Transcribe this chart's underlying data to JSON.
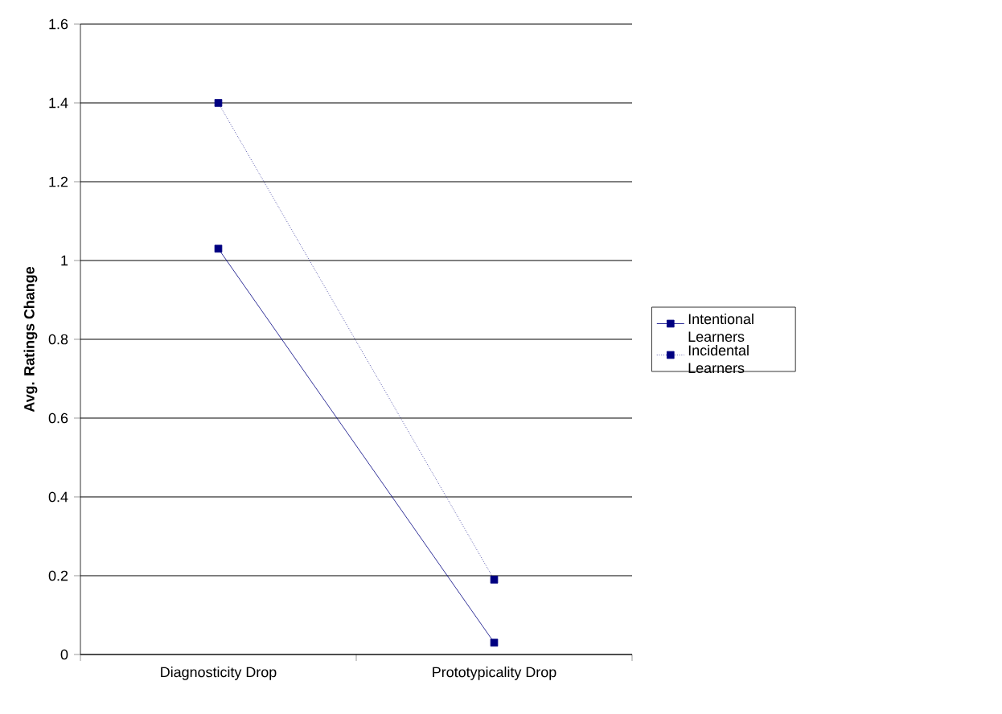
{
  "chart_data": {
    "type": "line",
    "ylabel": "Avg. Ratings Change",
    "categories": [
      "Diagnosticity Drop",
      "Prototypicality Drop"
    ],
    "series": [
      {
        "name": "Intentional Learners",
        "color": "#000080",
        "values": [
          1.03,
          0.03
        ],
        "line_style": "solid"
      },
      {
        "name": "Incidental Learners",
        "color": "#000080",
        "values": [
          1.4,
          0.19
        ],
        "line_style": "dotted"
      }
    ],
    "ylim": [
      0,
      1.6
    ],
    "yticks": [
      0,
      0.2,
      0.4,
      0.6,
      0.8,
      1,
      1.2,
      1.4,
      1.6
    ],
    "grid": "y",
    "legend": "right",
    "marker": "square"
  }
}
